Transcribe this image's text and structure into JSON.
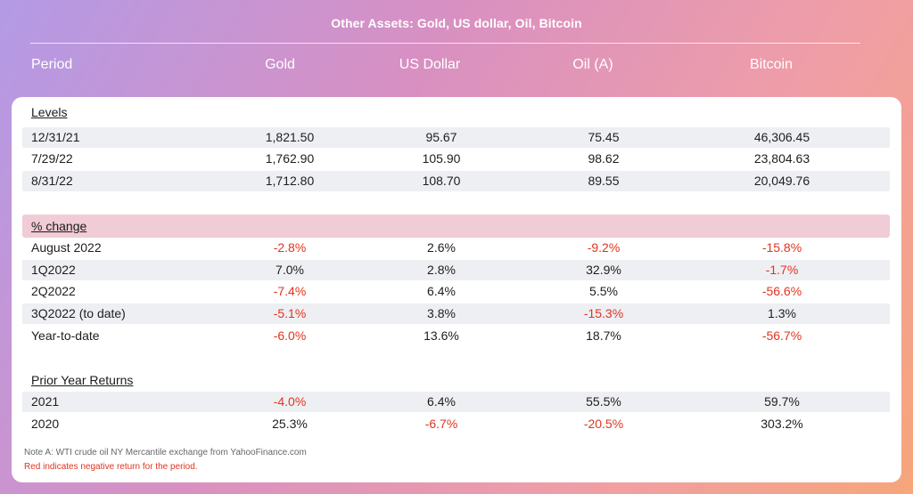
{
  "header": {
    "title": "Other Assets: Gold, US dollar, Oil, Bitcoin",
    "columns": [
      "Period",
      "Gold",
      "US Dollar",
      "Oil (A)",
      "Bitcoin"
    ]
  },
  "colors": {
    "negative": "#e0341f",
    "band": "#f0ccd6",
    "row_shade": "#eeeff3"
  },
  "chart_data": {
    "type": "table",
    "title": "Other Assets: Gold, US dollar, Oil, Bitcoin",
    "columns": [
      "Period",
      "Gold",
      "US Dollar",
      "Oil (A)",
      "Bitcoin"
    ],
    "sections": [
      {
        "label": "Levels",
        "rows": [
          {
            "period": "12/31/21",
            "values": [
              "1,821.50",
              "95.67",
              "75.45",
              "46,306.45"
            ],
            "neg": [
              false,
              false,
              false,
              false
            ]
          },
          {
            "period": "7/29/22",
            "values": [
              "1,762.90",
              "105.90",
              "98.62",
              "23,804.63"
            ],
            "neg": [
              false,
              false,
              false,
              false
            ]
          },
          {
            "period": "8/31/22",
            "values": [
              "1,712.80",
              "108.70",
              "89.55",
              "20,049.76"
            ],
            "neg": [
              false,
              false,
              false,
              false
            ]
          }
        ]
      },
      {
        "label": "% change",
        "rows": [
          {
            "period": "August 2022",
            "values": [
              "-2.8%",
              "2.6%",
              "-9.2%",
              "-15.8%"
            ],
            "neg": [
              true,
              false,
              true,
              true
            ]
          },
          {
            "period": "1Q2022",
            "values": [
              "7.0%",
              "2.8%",
              "32.9%",
              "-1.7%"
            ],
            "neg": [
              false,
              false,
              false,
              true
            ]
          },
          {
            "period": "2Q2022",
            "values": [
              "-7.4%",
              "6.4%",
              "5.5%",
              "-56.6%"
            ],
            "neg": [
              true,
              false,
              false,
              true
            ]
          },
          {
            "period": "3Q2022 (to date)",
            "values": [
              "-5.1%",
              "3.8%",
              "-15.3%",
              "1.3%"
            ],
            "neg": [
              true,
              false,
              true,
              false
            ]
          },
          {
            "period": "Year-to-date",
            "values": [
              "-6.0%",
              "13.6%",
              "18.7%",
              "-56.7%"
            ],
            "neg": [
              true,
              false,
              false,
              true
            ]
          }
        ]
      },
      {
        "label": "Prior Year Returns",
        "rows": [
          {
            "period": "2021",
            "values": [
              "-4.0%",
              "6.4%",
              "55.5%",
              "59.7%"
            ],
            "neg": [
              true,
              false,
              false,
              false
            ]
          },
          {
            "period": "2020",
            "values": [
              "25.3%",
              "-6.7%",
              "-20.5%",
              "303.2%"
            ],
            "neg": [
              false,
              true,
              true,
              false
            ]
          }
        ]
      }
    ]
  },
  "notes": {
    "note_a": "Note A: WTI crude oil NY Mercantile exchange from YahooFinance.com",
    "red_note": "Red indicates negative return for the period."
  }
}
